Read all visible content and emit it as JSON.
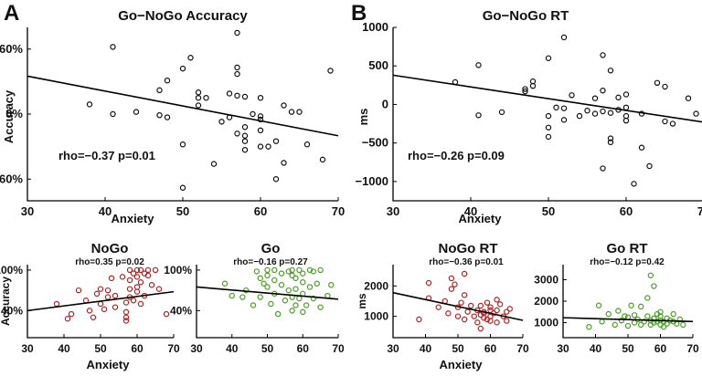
{
  "panel_labels": {
    "a": "A",
    "b": "B"
  },
  "chart_data": [
    {
      "id": "accuracy",
      "type": "scatter",
      "title": "Go−NoGo Accuracy",
      "xlabel": "Anxiety",
      "ylabel": "Accuracy",
      "xlim": [
        30,
        70
      ],
      "ylim": [
        -80,
        80
      ],
      "xticks": [
        30,
        40,
        50,
        60,
        70
      ],
      "yticks": [
        -60,
        0,
        60
      ],
      "ytick_labels": [
        "−60%",
        "0%",
        "60%"
      ],
      "annotation": "rho=−0.37 p=0.01",
      "color": "#111111",
      "fit": [
        [
          30,
          35
        ],
        [
          70,
          -20
        ]
      ],
      "points": [
        [
          38,
          9
        ],
        [
          41,
          62
        ],
        [
          41,
          0
        ],
        [
          44,
          2
        ],
        [
          47,
          22
        ],
        [
          47,
          -1
        ],
        [
          48,
          -3
        ],
        [
          48,
          31
        ],
        [
          50,
          42
        ],
        [
          50,
          -28
        ],
        [
          51,
          52
        ],
        [
          52,
          20
        ],
        [
          52,
          15
        ],
        [
          52,
          8
        ],
        [
          53,
          15
        ],
        [
          54,
          -46
        ],
        [
          55,
          -7
        ],
        [
          56,
          19
        ],
        [
          56,
          -3
        ],
        [
          57,
          75
        ],
        [
          57,
          43
        ],
        [
          57,
          37
        ],
        [
          57,
          17
        ],
        [
          57,
          -18
        ],
        [
          58,
          16
        ],
        [
          58,
          -12
        ],
        [
          58,
          -20
        ],
        [
          58,
          -25
        ],
        [
          58,
          -33
        ],
        [
          59,
          0
        ],
        [
          60,
          15
        ],
        [
          60,
          -2
        ],
        [
          60,
          -5
        ],
        [
          60,
          -15
        ],
        [
          60,
          -30
        ],
        [
          61,
          -30
        ],
        [
          62,
          -25
        ],
        [
          62,
          -60
        ],
        [
          63,
          8
        ],
        [
          63,
          -45
        ],
        [
          64,
          2
        ],
        [
          65,
          2
        ],
        [
          66,
          -28
        ],
        [
          68,
          -42
        ],
        [
          69,
          40
        ],
        [
          50,
          -68
        ]
      ]
    },
    {
      "id": "rt",
      "type": "scatter",
      "title": "Go−NoGo RT",
      "xlabel": "Anxiety",
      "ylabel": "ms",
      "xlim": [
        30,
        70
      ],
      "ylim": [
        -1250,
        1000
      ],
      "xticks": [
        30,
        40,
        50,
        60,
        70
      ],
      "yticks": [
        -1000,
        -500,
        0,
        500,
        1000
      ],
      "ytick_labels": [
        "−1000",
        "−500",
        "0",
        "500",
        "1000"
      ],
      "annotation": "rho=−0.26 p=0.09",
      "color": "#111111",
      "fit": [
        [
          30,
          380
        ],
        [
          70,
          -230
        ]
      ],
      "points": [
        [
          38,
          290
        ],
        [
          41,
          510
        ],
        [
          41,
          -140
        ],
        [
          44,
          -100
        ],
        [
          47,
          170
        ],
        [
          47,
          200
        ],
        [
          48,
          240
        ],
        [
          48,
          300
        ],
        [
          50,
          600
        ],
        [
          50,
          -150
        ],
        [
          50,
          -300
        ],
        [
          50,
          -420
        ],
        [
          51,
          -40
        ],
        [
          52,
          870
        ],
        [
          52,
          -50
        ],
        [
          52,
          -200
        ],
        [
          53,
          120
        ],
        [
          54,
          -150
        ],
        [
          55,
          -80
        ],
        [
          56,
          80
        ],
        [
          56,
          -120
        ],
        [
          57,
          640
        ],
        [
          57,
          180
        ],
        [
          57,
          -90
        ],
        [
          57,
          -830
        ],
        [
          58,
          440
        ],
        [
          58,
          -110
        ],
        [
          58,
          -440
        ],
        [
          58,
          -490
        ],
        [
          59,
          90
        ],
        [
          59,
          -70
        ],
        [
          60,
          130
        ],
        [
          60,
          -40
        ],
        [
          60,
          -150
        ],
        [
          60,
          -210
        ],
        [
          61,
          -1030
        ],
        [
          62,
          -560
        ],
        [
          62,
          -120
        ],
        [
          63,
          -800
        ],
        [
          64,
          280
        ],
        [
          65,
          230
        ],
        [
          65,
          -220
        ],
        [
          66,
          -250
        ],
        [
          68,
          80
        ],
        [
          69,
          -120
        ]
      ]
    },
    {
      "id": "nogo",
      "type": "scatter",
      "title": "NoGo",
      "xlabel": "Anxiety",
      "ylabel": "Accuracy",
      "xlim": [
        30,
        70
      ],
      "ylim": [
        0,
        108
      ],
      "xticks": [
        30,
        40,
        50,
        60,
        70
      ],
      "yticks": [
        40,
        100
      ],
      "ytick_labels": [
        "40%",
        "100%"
      ],
      "annotation": "rho=0.35 p=0.02",
      "color": "#b22222",
      "fit": [
        [
          30,
          40
        ],
        [
          70,
          68
        ]
      ],
      "points": [
        [
          38,
          50
        ],
        [
          41,
          28
        ],
        [
          42,
          35
        ],
        [
          44,
          70
        ],
        [
          46,
          55
        ],
        [
          47,
          40
        ],
        [
          48,
          30
        ],
        [
          49,
          65
        ],
        [
          50,
          50
        ],
        [
          50,
          72
        ],
        [
          51,
          42
        ],
        [
          52,
          70
        ],
        [
          52,
          60
        ],
        [
          53,
          88
        ],
        [
          54,
          45
        ],
        [
          54,
          62
        ],
        [
          56,
          90
        ],
        [
          57,
          52
        ],
        [
          57,
          38
        ],
        [
          57,
          30
        ],
        [
          57,
          25
        ],
        [
          58,
          100
        ],
        [
          58,
          85
        ],
        [
          58,
          72
        ],
        [
          58,
          60
        ],
        [
          59,
          95
        ],
        [
          59,
          55
        ],
        [
          60,
          100
        ],
        [
          60,
          90
        ],
        [
          60,
          75
        ],
        [
          60,
          68
        ],
        [
          61,
          100
        ],
        [
          61,
          82
        ],
        [
          61,
          50
        ],
        [
          62,
          95
        ],
        [
          62,
          62
        ],
        [
          63,
          100
        ],
        [
          63,
          92
        ],
        [
          64,
          78
        ],
        [
          65,
          100
        ],
        [
          66,
          72
        ],
        [
          68,
          35
        ]
      ]
    },
    {
      "id": "go",
      "type": "scatter",
      "title": "Go",
      "xlabel": "",
      "ylabel": "",
      "xlim": [
        30,
        70
      ],
      "ylim": [
        0,
        108
      ],
      "xticks": [
        30,
        40,
        50,
        60,
        70
      ],
      "yticks": [
        40,
        100
      ],
      "ytick_labels": [
        "40%",
        "100%"
      ],
      "annotation": "rho=−0.16 p=0.27",
      "color": "#4a9e23",
      "fit": [
        [
          30,
          75
        ],
        [
          70,
          57
        ]
      ],
      "points": [
        [
          38,
          80
        ],
        [
          40,
          62
        ],
        [
          43,
          60
        ],
        [
          44,
          70
        ],
        [
          46,
          48
        ],
        [
          47,
          98
        ],
        [
          48,
          88
        ],
        [
          48,
          60
        ],
        [
          49,
          80
        ],
        [
          50,
          100
        ],
        [
          50,
          92
        ],
        [
          50,
          75
        ],
        [
          51,
          50
        ],
        [
          52,
          100
        ],
        [
          52,
          85
        ],
        [
          52,
          65
        ],
        [
          53,
          35
        ],
        [
          54,
          95
        ],
        [
          54,
          78
        ],
        [
          55,
          55
        ],
        [
          56,
          98
        ],
        [
          56,
          70
        ],
        [
          57,
          100
        ],
        [
          57,
          92
        ],
        [
          57,
          60
        ],
        [
          57,
          40
        ],
        [
          58,
          88
        ],
        [
          58,
          72
        ],
        [
          58,
          48
        ],
        [
          59,
          100
        ],
        [
          59,
          58
        ],
        [
          60,
          95
        ],
        [
          60,
          82
        ],
        [
          60,
          65
        ],
        [
          60,
          38
        ],
        [
          61,
          48
        ],
        [
          62,
          100
        ],
        [
          62,
          75
        ],
        [
          63,
          98
        ],
        [
          63,
          58
        ],
        [
          64,
          80
        ],
        [
          65,
          100
        ],
        [
          65,
          45
        ],
        [
          67,
          62
        ],
        [
          68,
          78
        ]
      ]
    },
    {
      "id": "nogo_rt",
      "type": "scatter",
      "title": "NoGo RT",
      "xlabel": "Anxiety",
      "ylabel": "ms",
      "xlim": [
        30,
        70
      ],
      "ylim": [
        300,
        2700
      ],
      "xticks": [
        30,
        40,
        50,
        60,
        70
      ],
      "yticks": [
        1000,
        2000
      ],
      "ytick_labels": [
        "1000",
        "2000"
      ],
      "annotation": "rho=−0.36 p=0.01",
      "color": "#b22222",
      "fit": [
        [
          30,
          1780
        ],
        [
          70,
          870
        ]
      ],
      "points": [
        [
          38,
          900
        ],
        [
          41,
          1600
        ],
        [
          41,
          2100
        ],
        [
          44,
          1300
        ],
        [
          46,
          1500
        ],
        [
          47,
          1100
        ],
        [
          48,
          2250
        ],
        [
          48,
          1900
        ],
        [
          49,
          2050
        ],
        [
          50,
          1300
        ],
        [
          50,
          1000
        ],
        [
          51,
          1450
        ],
        [
          52,
          2400
        ],
        [
          52,
          1700
        ],
        [
          52,
          900
        ],
        [
          53,
          1150
        ],
        [
          54,
          1350
        ],
        [
          55,
          1000
        ],
        [
          56,
          1200
        ],
        [
          56,
          800
        ],
        [
          57,
          1350
        ],
        [
          57,
          1050
        ],
        [
          57,
          600
        ],
        [
          58,
          1150
        ],
        [
          58,
          1100
        ],
        [
          58,
          950
        ],
        [
          59,
          1450
        ],
        [
          59,
          900
        ],
        [
          60,
          1300
        ],
        [
          60,
          1200
        ],
        [
          60,
          1000
        ],
        [
          60,
          850
        ],
        [
          61,
          1100
        ],
        [
          62,
          1550
        ],
        [
          62,
          1200
        ],
        [
          62,
          800
        ],
        [
          63,
          1400
        ],
        [
          64,
          1000
        ],
        [
          65,
          1150
        ],
        [
          65,
          850
        ],
        [
          66,
          1250
        ]
      ]
    },
    {
      "id": "go_rt",
      "type": "scatter",
      "title": "Go RT",
      "xlabel": "",
      "ylabel": "",
      "xlim": [
        30,
        70
      ],
      "ylim": [
        300,
        3700
      ],
      "xticks": [
        30,
        40,
        50,
        60,
        70
      ],
      "yticks": [
        1000,
        2000,
        3000
      ],
      "ytick_labels": [
        "1000",
        "2000",
        "3000"
      ],
      "annotation": "rho=−0.12 p=0.42",
      "color": "#4a9e23",
      "fit": [
        [
          30,
          1230
        ],
        [
          70,
          1050
        ]
      ],
      "points": [
        [
          38,
          800
        ],
        [
          41,
          1800
        ],
        [
          42,
          1050
        ],
        [
          44,
          1400
        ],
        [
          46,
          900
        ],
        [
          47,
          1550
        ],
        [
          48,
          1100
        ],
        [
          49,
          1300
        ],
        [
          50,
          1250
        ],
        [
          50,
          850
        ],
        [
          51,
          1800
        ],
        [
          52,
          1000
        ],
        [
          52,
          1350
        ],
        [
          53,
          1150
        ],
        [
          54,
          900
        ],
        [
          54,
          1750
        ],
        [
          55,
          1050
        ],
        [
          56,
          1300
        ],
        [
          56,
          2150
        ],
        [
          57,
          1100
        ],
        [
          57,
          900
        ],
        [
          57,
          3200
        ],
        [
          58,
          2700
        ],
        [
          58,
          1000
        ],
        [
          58,
          1200
        ],
        [
          59,
          1050
        ],
        [
          59,
          1400
        ],
        [
          60,
          1500
        ],
        [
          60,
          900
        ],
        [
          60,
          1100
        ],
        [
          60,
          1300
        ],
        [
          61,
          1050
        ],
        [
          61,
          800
        ],
        [
          62,
          1200
        ],
        [
          62,
          950
        ],
        [
          63,
          1100
        ],
        [
          64,
          1400
        ],
        [
          64,
          1050
        ],
        [
          65,
          950
        ],
        [
          66,
          1150
        ],
        [
          67,
          900
        ]
      ]
    }
  ]
}
